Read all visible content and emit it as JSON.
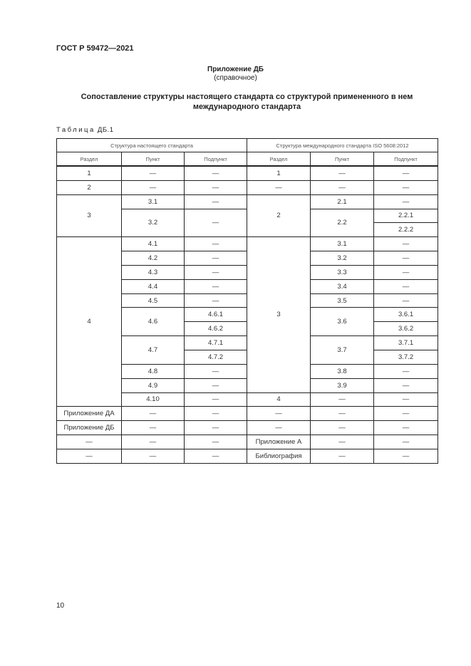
{
  "header": {
    "doc_code": "ГОСТ Р 59472—2021"
  },
  "annex": {
    "title": "Приложение ДБ",
    "subtitle": "(справочное)"
  },
  "heading": "Сопоставление структуры настоящего стандарта со структурой примененного в нем международного стандарта",
  "table": {
    "caption_word": "Таблица",
    "caption_id": "ДБ.1",
    "group_headers": [
      "Структура настоящего стандарта",
      "Структура международного стандарта ISO 5608:2012"
    ],
    "column_headers": [
      "Раздел",
      "Пункт",
      "Подпункт",
      "Раздел",
      "Пункт",
      "Подпункт"
    ],
    "rows": [
      [
        {
          "t": "1"
        },
        {
          "t": "—"
        },
        {
          "t": "—"
        },
        {
          "t": "1"
        },
        {
          "t": "—"
        },
        {
          "t": "—"
        }
      ],
      [
        {
          "t": "2"
        },
        {
          "t": "—"
        },
        {
          "t": "—"
        },
        {
          "t": "—"
        },
        {
          "t": "—"
        },
        {
          "t": "—"
        }
      ],
      [
        {
          "t": "3",
          "rs": 3
        },
        {
          "t": "3.1"
        },
        {
          "t": "—"
        },
        {
          "t": "2",
          "rs": 3
        },
        {
          "t": "2.1"
        },
        {
          "t": "—"
        }
      ],
      [
        {
          "t": "3.2",
          "rs": 2
        },
        {
          "t": "—",
          "rs": 2
        },
        {
          "t": "2.2",
          "rs": 2
        },
        {
          "t": "2.2.1"
        }
      ],
      [
        {
          "t": "2.2.2"
        }
      ],
      [
        {
          "t": "4",
          "rs": 12
        },
        {
          "t": "4.1"
        },
        {
          "t": "—"
        },
        {
          "t": "3",
          "rs": 11
        },
        {
          "t": "3.1"
        },
        {
          "t": "—"
        }
      ],
      [
        {
          "t": "4.2"
        },
        {
          "t": "—"
        },
        {
          "t": "3.2"
        },
        {
          "t": "—"
        }
      ],
      [
        {
          "t": "4.3"
        },
        {
          "t": "—"
        },
        {
          "t": "3.3"
        },
        {
          "t": "—"
        }
      ],
      [
        {
          "t": "4.4"
        },
        {
          "t": "—"
        },
        {
          "t": "3.4"
        },
        {
          "t": "—"
        }
      ],
      [
        {
          "t": "4.5"
        },
        {
          "t": "—"
        },
        {
          "t": "3.5"
        },
        {
          "t": "—"
        }
      ],
      [
        {
          "t": "4.6",
          "rs": 2
        },
        {
          "t": "4.6.1"
        },
        {
          "t": "3.6",
          "rs": 2
        },
        {
          "t": "3.6.1"
        }
      ],
      [
        {
          "t": "4.6.2"
        },
        {
          "t": "3.6.2"
        }
      ],
      [
        {
          "t": "4.7",
          "rs": 2
        },
        {
          "t": "4.7.1"
        },
        {
          "t": "3.7",
          "rs": 2
        },
        {
          "t": "3.7.1"
        }
      ],
      [
        {
          "t": "4.7.2"
        },
        {
          "t": "3.7.2"
        }
      ],
      [
        {
          "t": "4.8"
        },
        {
          "t": "—"
        },
        {
          "t": "3.8"
        },
        {
          "t": "—"
        }
      ],
      [
        {
          "t": "4.9"
        },
        {
          "t": "—"
        },
        {
          "t": "3.9"
        },
        {
          "t": "—"
        }
      ],
      [
        {
          "t": "4.10"
        },
        {
          "t": "—"
        },
        {
          "t": "4"
        },
        {
          "t": "—"
        },
        {
          "t": "—"
        }
      ],
      [
        {
          "t": "Приложение ДА"
        },
        {
          "t": "—"
        },
        {
          "t": "—"
        },
        {
          "t": "—"
        },
        {
          "t": "—"
        },
        {
          "t": "—"
        }
      ],
      [
        {
          "t": "Приложение ДБ"
        },
        {
          "t": "—"
        },
        {
          "t": "—"
        },
        {
          "t": "—"
        },
        {
          "t": "—"
        },
        {
          "t": "—"
        }
      ],
      [
        {
          "t": "—"
        },
        {
          "t": "—"
        },
        {
          "t": "—"
        },
        {
          "t": "Приложение А"
        },
        {
          "t": "—"
        },
        {
          "t": "—"
        }
      ],
      [
        {
          "t": "—"
        },
        {
          "t": "—"
        },
        {
          "t": "—"
        },
        {
          "t": "Библиография"
        },
        {
          "t": "—"
        },
        {
          "t": "—"
        }
      ]
    ]
  },
  "footer": {
    "page_number": "10"
  }
}
